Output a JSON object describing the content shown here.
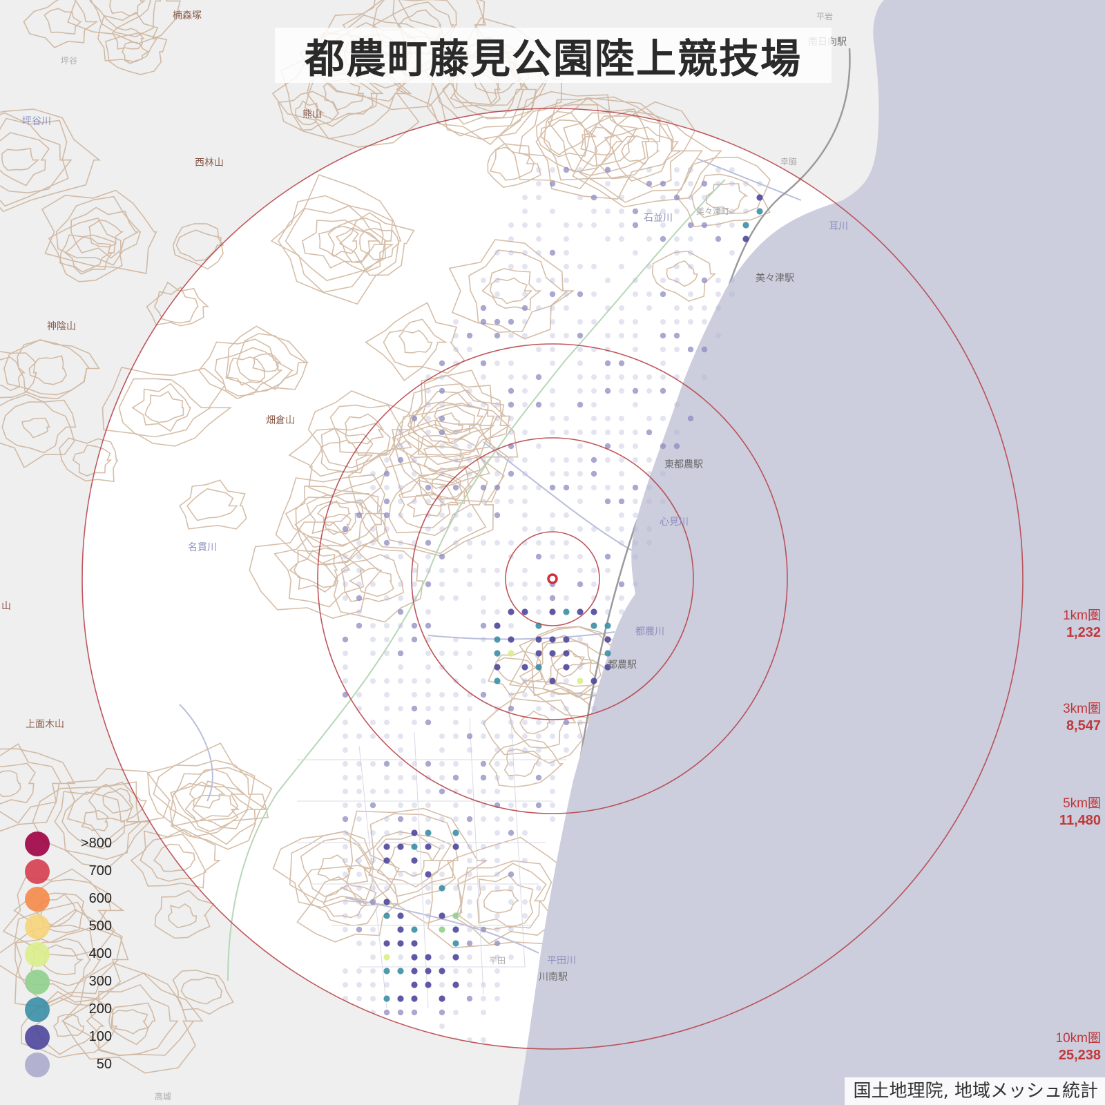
{
  "title": "都農町藤見公園陸上競技場",
  "attribution": "国土地理院, 地域メッシュ統計",
  "colors": {
    "sea": "#cccddd",
    "land_outside": "#efefef",
    "land_inside": "#ffffff",
    "contour": "#c8a98d",
    "ring": "#b8444a",
    "river_label": "#8c8fbf",
    "place_label": "#6a6a6a",
    "mountain_label": "#8a5a4a"
  },
  "rings": [
    {
      "label": "1km圏",
      "count": "1,232"
    },
    {
      "label": "3km圏",
      "count": "8,547"
    },
    {
      "label": "5km圏",
      "count": "11,480"
    },
    {
      "label": "10km圏",
      "count": "25,238"
    }
  ],
  "legend": [
    {
      "label": ">800",
      "color": "#9e0142"
    },
    {
      "label": "700",
      "color": "#d53e4f"
    },
    {
      "label": "600",
      "color": "#f4894a"
    },
    {
      "label": "500",
      "color": "#f6d47a"
    },
    {
      "label": "400",
      "color": "#d9ee8b"
    },
    {
      "label": "300",
      "color": "#8fd08c"
    },
    {
      "label": "200",
      "color": "#3a8ea6"
    },
    {
      "label": "100",
      "color": "#4e469c"
    },
    {
      "label": "50",
      "color": "#9e9cc6"
    }
  ],
  "places": {
    "mountains": [
      "楠森塚",
      "熊山",
      "西林山",
      "神陰山",
      "畑倉山",
      "上面木山"
    ],
    "rivers": [
      "坪谷川",
      "石並川",
      "耳川",
      "心見川",
      "名貫川",
      "都農川",
      "平田川"
    ],
    "stations": [
      "南日向駅",
      "美々津駅",
      "東都農駅",
      "都農駅",
      "川南駅"
    ],
    "towns": [
      "坪谷",
      "平岩",
      "幸脇",
      "美々津町",
      "平田",
      "高城",
      "山"
    ]
  }
}
